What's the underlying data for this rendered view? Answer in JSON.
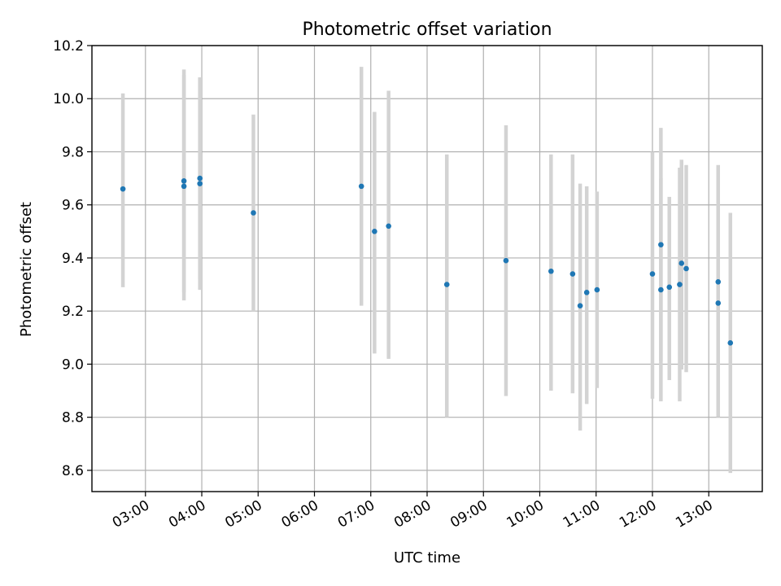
{
  "chart_data": {
    "type": "scatter",
    "title": "Photometric offset variation",
    "xlabel": "UTC time",
    "ylabel": "Photometric offset",
    "xlim": [
      "02:03",
      "13:57"
    ],
    "ylim": [
      8.52,
      10.2
    ],
    "x_ticks": [
      "03:00",
      "04:00",
      "05:00",
      "06:00",
      "07:00",
      "08:00",
      "09:00",
      "10:00",
      "11:00",
      "12:00",
      "13:00"
    ],
    "y_ticks": [
      8.6,
      8.8,
      9.0,
      9.2,
      9.4,
      9.6,
      9.8,
      10.0,
      10.2
    ],
    "grid": true,
    "colors": {
      "points": "#1f77b4",
      "error_bars": "#d3d3d3",
      "grid": "#b0b0b0"
    },
    "points": [
      {
        "time": "02:36",
        "value": 9.66,
        "lower": 9.29,
        "upper": 10.02
      },
      {
        "time": "03:41",
        "value": 9.69,
        "lower": 9.27,
        "upper": 10.11
      },
      {
        "time": "03:41",
        "value": 9.67,
        "lower": 9.24,
        "upper": 10.09
      },
      {
        "time": "03:58",
        "value": 9.7,
        "lower": 9.32,
        "upper": 10.08
      },
      {
        "time": "03:58",
        "value": 9.68,
        "lower": 9.28,
        "upper": 10.08
      },
      {
        "time": "04:55",
        "value": 9.57,
        "lower": 9.2,
        "upper": 9.94
      },
      {
        "time": "06:50",
        "value": 9.67,
        "lower": 9.22,
        "upper": 10.12
      },
      {
        "time": "07:04",
        "value": 9.5,
        "lower": 9.04,
        "upper": 9.95
      },
      {
        "time": "07:19",
        "value": 9.52,
        "lower": 9.02,
        "upper": 10.03
      },
      {
        "time": "08:21",
        "value": 9.3,
        "lower": 8.8,
        "upper": 9.79
      },
      {
        "time": "09:24",
        "value": 9.39,
        "lower": 8.88,
        "upper": 9.9
      },
      {
        "time": "10:12",
        "value": 9.35,
        "lower": 8.9,
        "upper": 9.79
      },
      {
        "time": "10:35",
        "value": 9.34,
        "lower": 8.89,
        "upper": 9.79
      },
      {
        "time": "10:43",
        "value": 9.22,
        "lower": 8.75,
        "upper": 9.68
      },
      {
        "time": "10:50",
        "value": 9.27,
        "lower": 8.85,
        "upper": 9.67
      },
      {
        "time": "11:01",
        "value": 9.28,
        "lower": 8.91,
        "upper": 9.65
      },
      {
        "time": "12:00",
        "value": 9.34,
        "lower": 8.87,
        "upper": 9.8
      },
      {
        "time": "12:09",
        "value": 9.45,
        "lower": 9.01,
        "upper": 9.89
      },
      {
        "time": "12:09",
        "value": 9.28,
        "lower": 8.86,
        "upper": 9.7
      },
      {
        "time": "12:18",
        "value": 9.29,
        "lower": 8.94,
        "upper": 9.63
      },
      {
        "time": "12:29",
        "value": 9.3,
        "lower": 8.86,
        "upper": 9.74
      },
      {
        "time": "12:31",
        "value": 9.38,
        "lower": 8.98,
        "upper": 9.77
      },
      {
        "time": "12:36",
        "value": 9.36,
        "lower": 8.97,
        "upper": 9.75
      },
      {
        "time": "13:10",
        "value": 9.31,
        "lower": 8.86,
        "upper": 9.75
      },
      {
        "time": "13:10",
        "value": 9.23,
        "lower": 8.8,
        "upper": 9.66
      },
      {
        "time": "13:23",
        "value": 9.08,
        "lower": 8.59,
        "upper": 9.57
      }
    ]
  }
}
